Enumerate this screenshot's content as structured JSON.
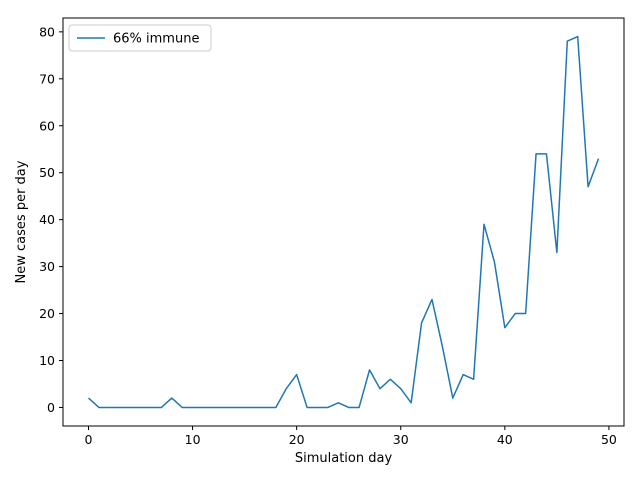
{
  "chart_data": {
    "type": "line",
    "xlabel": "Simulation day",
    "ylabel": "New cases per day",
    "xlim": [
      -2.45,
      51.45
    ],
    "ylim": [
      -3.95,
      82.95
    ],
    "xticks": [
      0,
      10,
      20,
      30,
      40,
      50
    ],
    "yticks": [
      0,
      10,
      20,
      30,
      40,
      50,
      60,
      70,
      80
    ],
    "grid": false,
    "legend_position": "top-left",
    "x": [
      0,
      1,
      2,
      3,
      4,
      5,
      6,
      7,
      8,
      9,
      10,
      11,
      12,
      13,
      14,
      15,
      16,
      17,
      18,
      19,
      20,
      21,
      22,
      23,
      24,
      25,
      26,
      27,
      28,
      29,
      30,
      31,
      32,
      33,
      34,
      35,
      36,
      37,
      38,
      39,
      40,
      41,
      42,
      43,
      44,
      45,
      46,
      47,
      48,
      49
    ],
    "series": [
      {
        "name": "66% immune",
        "color": "#1f77b4",
        "values": [
          2,
          0,
          0,
          0,
          0,
          0,
          0,
          0,
          2,
          0,
          0,
          0,
          0,
          0,
          0,
          0,
          0,
          0,
          0,
          4,
          7,
          0,
          0,
          0,
          1,
          0,
          0,
          8,
          4,
          6,
          4,
          1,
          18,
          23,
          13,
          2,
          7,
          6,
          39,
          31,
          17,
          20,
          20,
          54,
          54,
          33,
          78,
          79,
          47,
          53
        ]
      }
    ]
  }
}
